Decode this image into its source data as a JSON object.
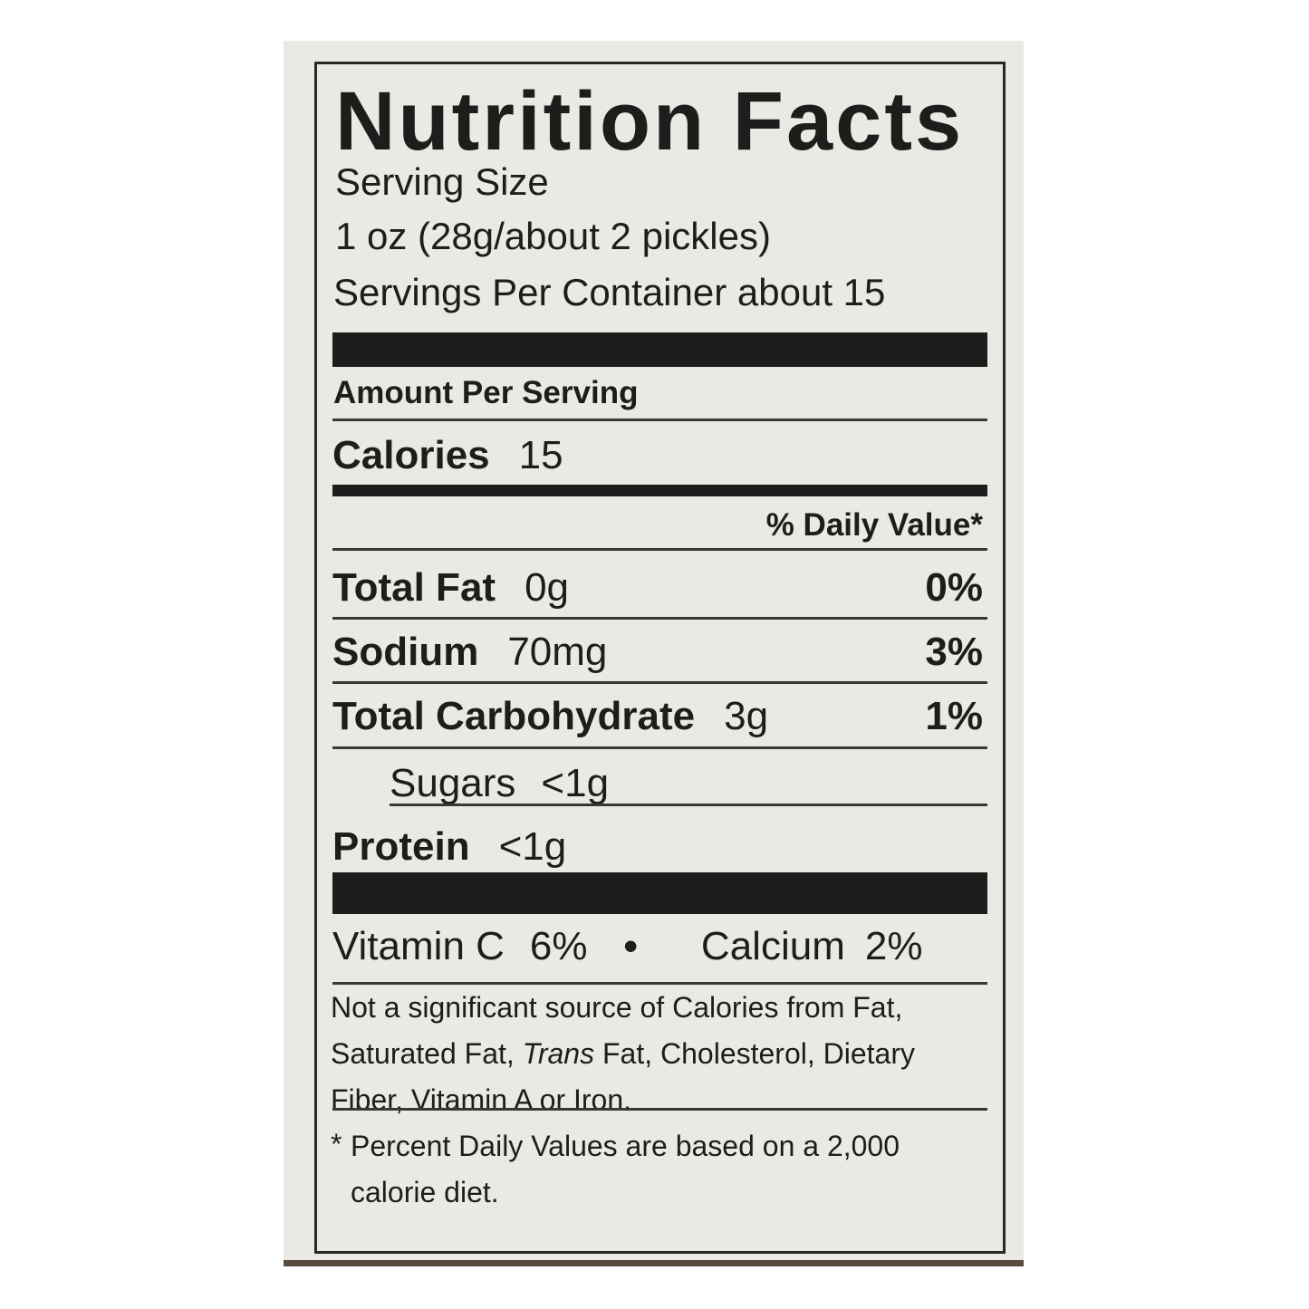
{
  "title": "Nutrition Facts",
  "serving_size_label": "Serving Size",
  "serving_size": "1 oz (28g/about 2 pickles)",
  "servings_per_container": "Servings Per Container about 15",
  "amount_per_serving": "Amount Per Serving",
  "calories": {
    "label": "Calories",
    "value": "15"
  },
  "daily_value_header": "% Daily Value*",
  "nutrients": [
    {
      "label": "Total Fat",
      "amount": "0g",
      "dv": "0%"
    },
    {
      "label": "Sodium",
      "amount": "70mg",
      "dv": "3%"
    },
    {
      "label": "Total Carbohydrate",
      "amount": "3g",
      "dv": "1%"
    },
    {
      "label": "Sugars",
      "amount": "<1g",
      "dv": ""
    },
    {
      "label": "Protein",
      "amount": "<1g",
      "dv": ""
    }
  ],
  "vitamins": {
    "vitamin_c": {
      "label": "Vitamin C",
      "value": "6%"
    },
    "separator": "•",
    "calcium": {
      "label": "Calcium",
      "value": "2%"
    }
  },
  "not_significant": {
    "before": "Not a significant source of Calories from Fat, Saturated Fat, ",
    "italic": "Trans",
    "after": " Fat, Cholesterol, Dietary Fiber, Vitamin A or Iron."
  },
  "footnote": {
    "star": "*",
    "text": "Percent Daily Values are based on a 2,000 calorie diet."
  }
}
